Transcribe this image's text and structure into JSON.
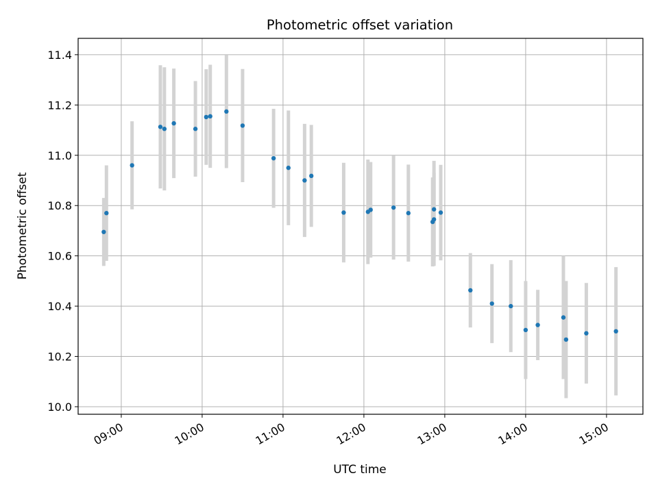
{
  "chart_data": {
    "type": "scatter",
    "title": "Photometric offset variation",
    "xlabel": "UTC time",
    "ylabel": "Photometric offset",
    "x_unit": "UTC time (HH:MM)",
    "xlim": [
      "08:28",
      "15:27"
    ],
    "ylim": [
      9.97,
      11.465
    ],
    "x_ticks": [
      "09:00",
      "10:00",
      "11:00",
      "12:00",
      "13:00",
      "14:00",
      "15:00"
    ],
    "y_ticks": [
      "10.0",
      "10.2",
      "10.4",
      "10.6",
      "10.8",
      "11.0",
      "11.2",
      "11.4"
    ],
    "grid": true,
    "colors": {
      "point": "#1f77b4",
      "errorbar": "#d3d3d3",
      "grid": "#b0b0b0"
    },
    "points": [
      {
        "t": "08:47",
        "y": 10.695,
        "err": 0.135
      },
      {
        "t": "08:49",
        "y": 10.77,
        "err": 0.19
      },
      {
        "t": "09:08",
        "y": 10.96,
        "err": 0.175
      },
      {
        "t": "09:29",
        "y": 11.113,
        "err": 0.245
      },
      {
        "t": "09:32",
        "y": 11.105,
        "err": 0.245
      },
      {
        "t": "09:39",
        "y": 11.127,
        "err": 0.218
      },
      {
        "t": "09:55",
        "y": 11.105,
        "err": 0.19
      },
      {
        "t": "10:03",
        "y": 11.152,
        "err": 0.19
      },
      {
        "t": "10:06",
        "y": 11.155,
        "err": 0.205
      },
      {
        "t": "10:18",
        "y": 11.174,
        "err": 0.225
      },
      {
        "t": "10:30",
        "y": 11.118,
        "err": 0.225
      },
      {
        "t": "10:53",
        "y": 10.988,
        "err": 0.197
      },
      {
        "t": "11:04",
        "y": 10.95,
        "err": 0.228
      },
      {
        "t": "11:16",
        "y": 10.9,
        "err": 0.225
      },
      {
        "t": "11:21",
        "y": 10.918,
        "err": 0.203
      },
      {
        "t": "11:45",
        "y": 10.772,
        "err": 0.198
      },
      {
        "t": "12:03",
        "y": 10.775,
        "err": 0.208
      },
      {
        "t": "12:05",
        "y": 10.783,
        "err": 0.19
      },
      {
        "t": "12:22",
        "y": 10.792,
        "err": 0.207
      },
      {
        "t": "12:33",
        "y": 10.77,
        "err": 0.193
      },
      {
        "t": "12:51",
        "y": 10.735,
        "err": 0.177
      },
      {
        "t": "12:52",
        "y": 10.745,
        "err": 0.185
      },
      {
        "t": "12:52",
        "y": 10.785,
        "err": 0.193
      },
      {
        "t": "12:57",
        "y": 10.772,
        "err": 0.19
      },
      {
        "t": "13:19",
        "y": 10.463,
        "err": 0.148
      },
      {
        "t": "13:35",
        "y": 10.41,
        "err": 0.157
      },
      {
        "t": "13:49",
        "y": 10.4,
        "err": 0.183
      },
      {
        "t": "14:00",
        "y": 10.305,
        "err": 0.195
      },
      {
        "t": "14:09",
        "y": 10.325,
        "err": 0.14
      },
      {
        "t": "14:28",
        "y": 10.355,
        "err": 0.245
      },
      {
        "t": "14:30",
        "y": 10.267,
        "err": 0.233
      },
      {
        "t": "14:45",
        "y": 10.292,
        "err": 0.2
      },
      {
        "t": "15:07",
        "y": 10.3,
        "err": 0.255
      }
    ]
  }
}
